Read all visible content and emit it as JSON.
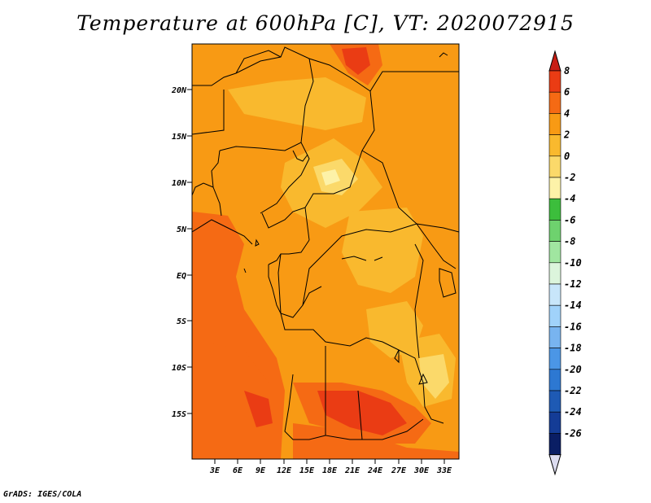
{
  "title": "Temperature at 600hPa [C], VT: 2020072915",
  "footer": "GrADS: IGES/COLA",
  "map": {
    "lat_labels": [
      "20N",
      "15N",
      "10N",
      "5N",
      "EQ",
      "5S",
      "10S",
      "15S"
    ],
    "lon_labels": [
      "3E",
      "6E",
      "9E",
      "12E",
      "15E",
      "18E",
      "21E",
      "24E",
      "27E",
      "30E",
      "33E"
    ]
  },
  "colorbar": {
    "labels": [
      "8",
      "6",
      "4",
      "2",
      "0",
      "-2",
      "-4",
      "-6",
      "-8",
      "-10",
      "-12",
      "-14",
      "-16",
      "-18",
      "-20",
      "-22",
      "-24",
      "-26"
    ],
    "colors": [
      "#c81e14",
      "#ea3c14",
      "#f56a14",
      "#f89a14",
      "#f9b92e",
      "#fbd96a",
      "#fdf2a8",
      "#3cbe3c",
      "#6ed26e",
      "#a0e6a0",
      "#dcf5dc",
      "#c8e6fa",
      "#a0d2fa",
      "#78b4f0",
      "#4b96e6",
      "#2d78d2",
      "#1e5ab4",
      "#143c96",
      "#0a1e64",
      "#dcdcf0"
    ]
  }
}
